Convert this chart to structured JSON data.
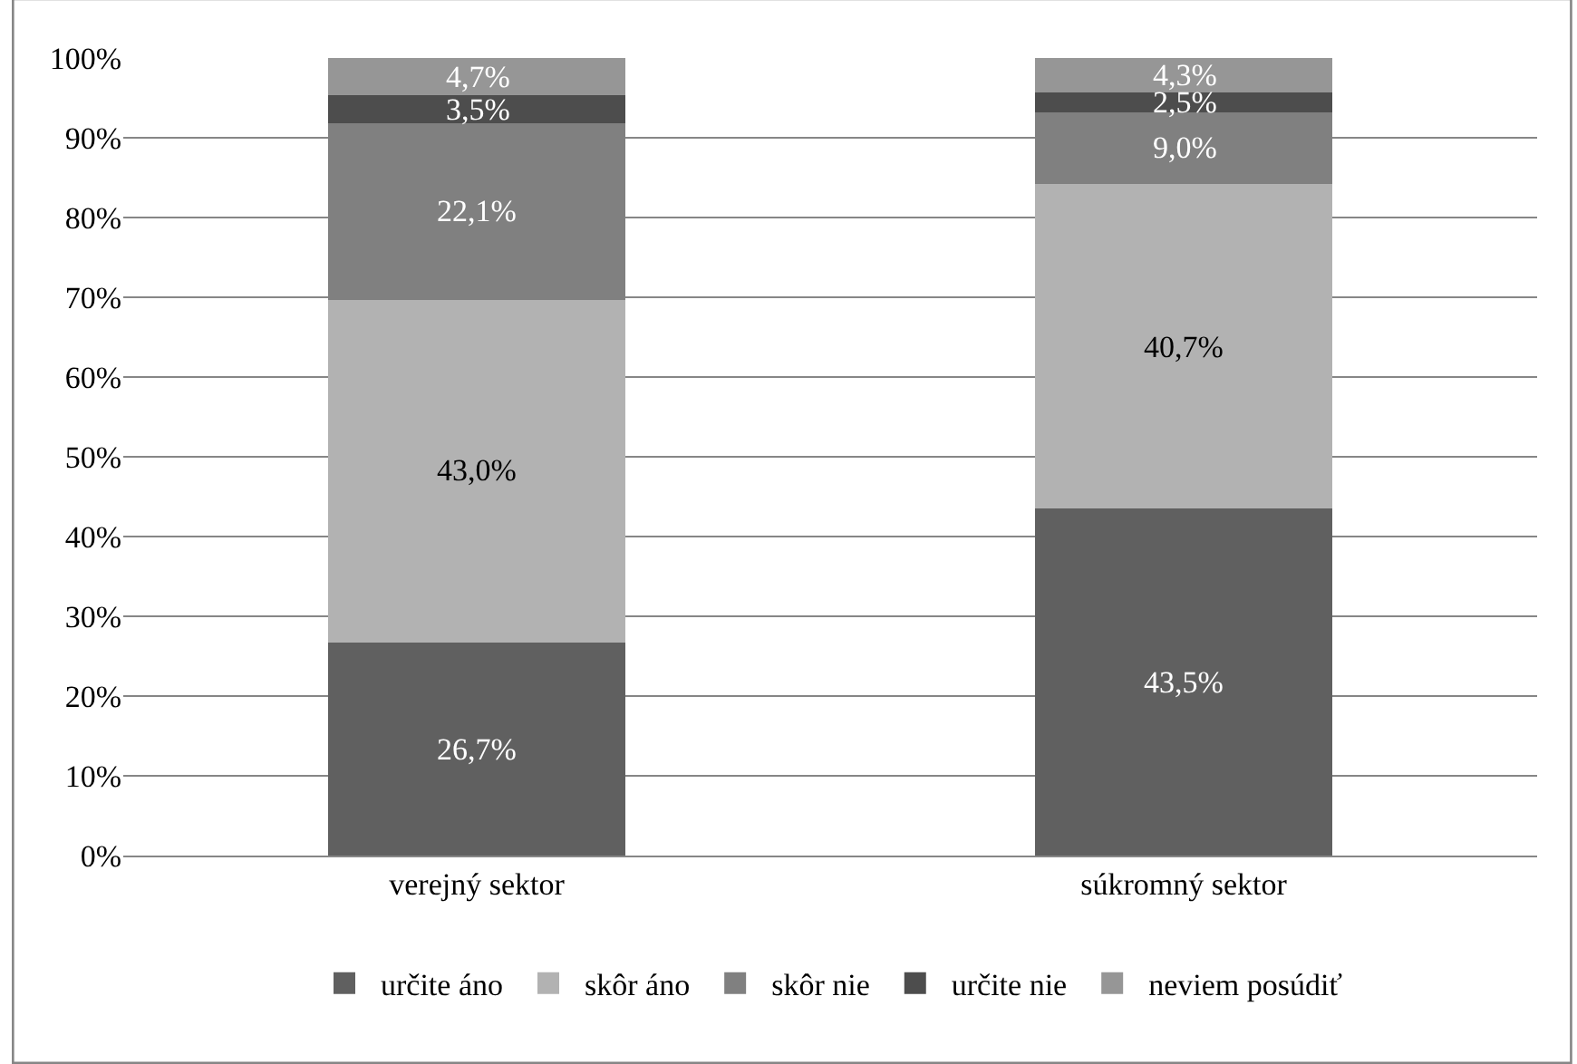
{
  "chart_data": {
    "type": "bar",
    "stacked": true,
    "categories": [
      "verejný sektor",
      "súkromný sektor"
    ],
    "series": [
      {
        "name": "určite áno",
        "color": "#606060",
        "values": [
          26.7,
          43.5
        ],
        "value_labels": [
          "26,7%",
          "43,5%"
        ]
      },
      {
        "name": "skôr áno",
        "color": "#b2b2b2",
        "values": [
          43.0,
          40.7
        ],
        "value_labels": [
          "43,0%",
          "40,7%"
        ]
      },
      {
        "name": "skôr nie",
        "color": "#808080",
        "values": [
          22.1,
          9.0
        ],
        "value_labels": [
          "22,1%",
          "9,0%"
        ]
      },
      {
        "name": "určite nie",
        "color": "#4d4d4d",
        "values": [
          3.5,
          2.5
        ],
        "value_labels": [
          "3,5%",
          "2,5%"
        ]
      },
      {
        "name": "neviem posúdiť",
        "color": "#969696",
        "values": [
          4.7,
          4.3
        ],
        "value_labels": [
          "4,7%",
          "4,3%"
        ]
      }
    ],
    "ylim": [
      0,
      100
    ],
    "yticks": [
      {
        "value": 0,
        "label": "0%"
      },
      {
        "value": 10,
        "label": "10%"
      },
      {
        "value": 20,
        "label": "20%"
      },
      {
        "value": 30,
        "label": "30%"
      },
      {
        "value": 40,
        "label": "40%"
      },
      {
        "value": 50,
        "label": "50%"
      },
      {
        "value": 60,
        "label": "60%"
      },
      {
        "value": 70,
        "label": "70%"
      },
      {
        "value": 80,
        "label": "80%"
      },
      {
        "value": 90,
        "label": "90%"
      },
      {
        "value": 100,
        "label": "100%"
      }
    ],
    "grid": "y",
    "legend": "bottom"
  }
}
